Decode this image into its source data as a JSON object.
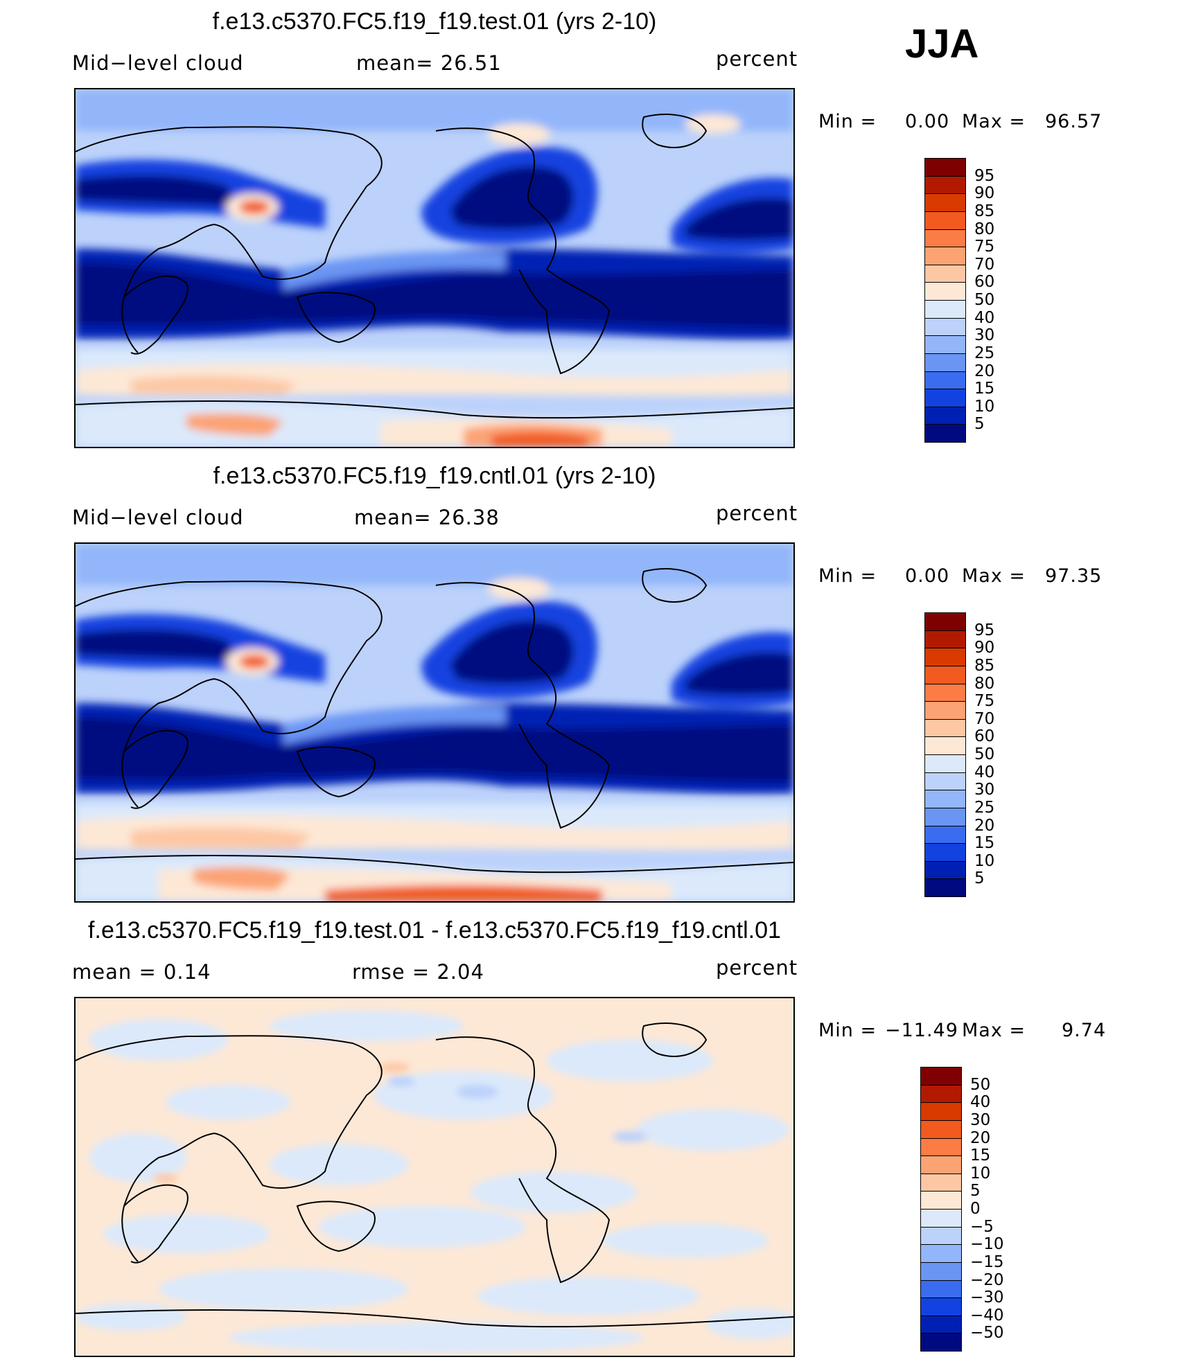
{
  "season": "JJA",
  "panels": [
    {
      "title": "f.e13.c5370.FC5.f19_f19.test.01 (yrs 2-10)",
      "left_label": "Mid−level  cloud",
      "mid_label": "mean=   26.51",
      "units": "percent",
      "min_label": "Min  =",
      "min_value": "0.00",
      "max_label": "Max  =",
      "max_value": "96.57",
      "colorbar": {
        "labels": [
          "95",
          "90",
          "85",
          "80",
          "75",
          "70",
          "60",
          "50",
          "40",
          "30",
          "25",
          "20",
          "15",
          "10",
          "5"
        ],
        "colors": [
          "#7f0000",
          "#b21a00",
          "#d93a00",
          "#f25a1f",
          "#fb7c44",
          "#fca374",
          "#fdc7a4",
          "#fde8d6",
          "#dbe9fb",
          "#bcd2fb",
          "#93b6fa",
          "#6a95f3",
          "#3a6cf0",
          "#1243e0",
          "#0020b4",
          "#000a80"
        ]
      },
      "mean": 26.51
    },
    {
      "title": "f.e13.c5370.FC5.f19_f19.cntl.01 (yrs 2-10)",
      "left_label": "Mid−level  cloud",
      "mid_label": "mean=   26.38",
      "units": "percent",
      "min_label": "Min  =",
      "min_value": "0.00",
      "max_label": "Max  =",
      "max_value": "97.35",
      "colorbar": {
        "labels": [
          "95",
          "90",
          "85",
          "80",
          "75",
          "70",
          "60",
          "50",
          "40",
          "30",
          "25",
          "20",
          "15",
          "10",
          "5"
        ],
        "colors": [
          "#7f0000",
          "#b21a00",
          "#d93a00",
          "#f25a1f",
          "#fb7c44",
          "#fca374",
          "#fdc7a4",
          "#fde8d6",
          "#dbe9fb",
          "#bcd2fb",
          "#93b6fa",
          "#6a95f3",
          "#3a6cf0",
          "#1243e0",
          "#0020b4",
          "#000a80"
        ]
      },
      "mean": 26.38
    },
    {
      "title": "f.e13.c5370.FC5.f19_f19.test.01 - f.e13.c5370.FC5.f19_f19.cntl.01",
      "left_label": "mean  =     0.14",
      "mid_label": "rmse  =     2.04",
      "units": "percent",
      "min_label": "Min  =",
      "min_value": "−11.49",
      "max_label": "Max  =",
      "max_value": "9.74",
      "colorbar": {
        "labels": [
          "50",
          "40",
          "30",
          "20",
          "15",
          "10",
          "5",
          "0",
          "−5",
          "−10",
          "−15",
          "−20",
          "−30",
          "−40",
          "−50"
        ],
        "colors": [
          "#7f0000",
          "#b21a00",
          "#d93a00",
          "#f25a1f",
          "#fb7c44",
          "#fca374",
          "#fdc7a4",
          "#fde8d6",
          "#dbe9fb",
          "#bcd2fb",
          "#93b6fa",
          "#6a95f3",
          "#3a6cf0",
          "#1243e0",
          "#0020b4",
          "#000a80"
        ]
      },
      "mean": 0.14,
      "rmse": 2.04
    }
  ]
}
